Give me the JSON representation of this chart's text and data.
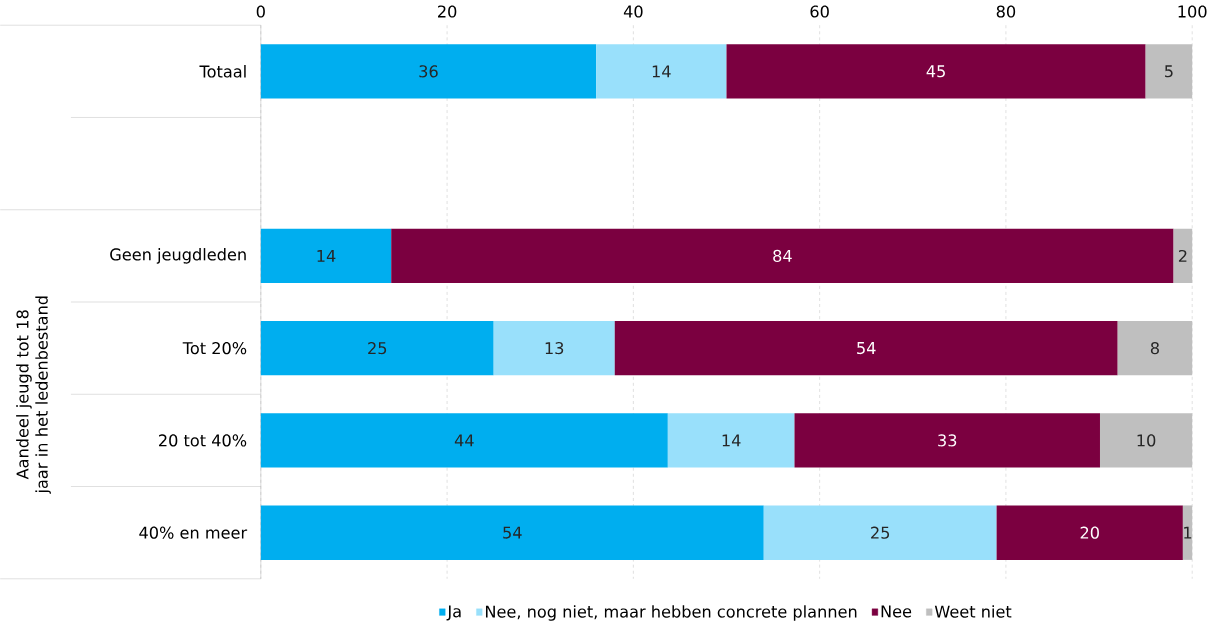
{
  "chart_data": {
    "type": "bar",
    "orientation": "horizontal",
    "stacked": true,
    "ylabel": "Aandeel jeugd tot 18 jaar in het ledenbestand",
    "categories": [
      "Totaal",
      null,
      "Geen jeugdleden",
      "Tot 20%",
      "20 tot 40%",
      "40% en meer"
    ],
    "series": [
      {
        "name": "Ja",
        "color": "#00aeef",
        "values": [
          36,
          null,
          14,
          25,
          43.7,
          54
        ],
        "value_labels": [
          "36",
          null,
          "14",
          "25",
          "44",
          "54"
        ]
      },
      {
        "name": "Nee, nog niet, maar hebben concrete plannen",
        "color": "#99e0fb",
        "values": [
          14,
          null,
          null,
          13,
          13.6,
          25
        ],
        "value_labels": [
          "14",
          null,
          null,
          "13",
          "14",
          "25"
        ]
      },
      {
        "name": "Nee",
        "color": "#7b0040",
        "values": [
          45,
          null,
          84,
          54,
          32.8,
          20
        ],
        "value_labels": [
          "45",
          null,
          "84",
          "54",
          "33",
          "20"
        ]
      },
      {
        "name": "Weet niet",
        "color": "#bfbfbf",
        "values": [
          5,
          null,
          2,
          8,
          9.9,
          1
        ],
        "value_labels": [
          "5",
          null,
          "2",
          "8",
          "10",
          "1"
        ]
      }
    ],
    "xlim": [
      0,
      100
    ],
    "xticks": [
      0,
      20,
      40,
      60,
      80,
      100
    ],
    "grid": "x",
    "legend": "bottom"
  }
}
